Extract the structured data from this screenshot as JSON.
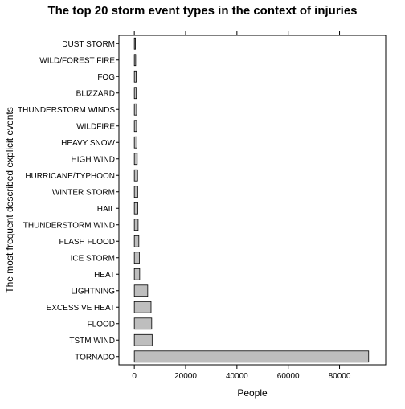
{
  "chart_data": {
    "type": "bar",
    "orientation": "horizontal",
    "title": "The top 20 storm event types in the context of injuries",
    "xlabel": "People",
    "ylabel": "The most frequent described explicit events",
    "categories": [
      "TORNADO",
      "TSTM WIND",
      "FLOOD",
      "EXCESSIVE HEAT",
      "LIGHTNING",
      "HEAT",
      "ICE STORM",
      "FLASH FLOOD",
      "THUNDERSTORM WIND",
      "HAIL",
      "WINTER STORM",
      "HURRICANE/TYPHOON",
      "HIGH WIND",
      "HEAVY SNOW",
      "WILDFIRE",
      "THUNDERSTORM WINDS",
      "BLIZZARD",
      "FOG",
      "WILD/FOREST FIRE",
      "DUST STORM"
    ],
    "values": [
      91346,
      6957,
      6789,
      6525,
      5230,
      2100,
      1975,
      1777,
      1488,
      1361,
      1321,
      1275,
      1137,
      1021,
      911,
      908,
      805,
      734,
      545,
      440
    ],
    "xlim": [
      -6000,
      98000
    ],
    "xticks": [
      0,
      20000,
      40000,
      60000,
      80000
    ],
    "grid": false,
    "bar_color": "#bebebe",
    "bar_stroke": "#000000"
  }
}
